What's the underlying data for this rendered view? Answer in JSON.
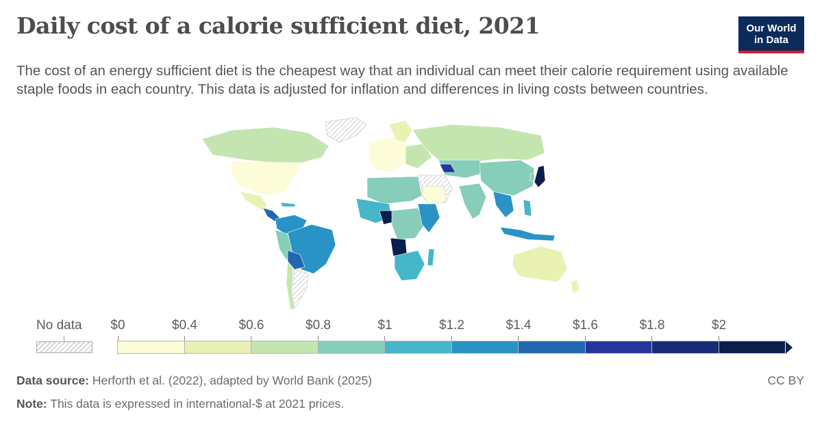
{
  "title": "Daily cost of a calorie sufficient diet, 2021",
  "subtitle": "The cost of an energy sufficient diet is the cheapest way that an individual can meet their calorie requirement using available staple foods in each country. This data is adjusted for inflation and differences in living costs between countries.",
  "logo": {
    "line1": "Our World",
    "line2": "in Data"
  },
  "legend": {
    "nodata_label": "No data",
    "ticks": [
      "$0",
      "$0.4",
      "$0.6",
      "$0.8",
      "$1",
      "$1.2",
      "$1.4",
      "$1.6",
      "$1.8",
      "$2"
    ],
    "colors": [
      "#fdfcd8",
      "#e9f2b3",
      "#c5e5b0",
      "#86cdba",
      "#46b6c9",
      "#2993c5",
      "#2266b0",
      "#24369a",
      "#172c77",
      "#0b1e4e"
    ]
  },
  "map_colors": {
    "land_default": "#c5e5b0",
    "no_data_hatch": "#d6d6d6",
    "border": "#ffffff"
  },
  "footer": {
    "source_label": "Data source:",
    "source_text": " Herforth et al. (2022), adapted by World Bank (2025)",
    "note_label": "Note:",
    "note_text": " This data is expressed in international-$ at 2021 prices.",
    "license": "CC BY"
  }
}
